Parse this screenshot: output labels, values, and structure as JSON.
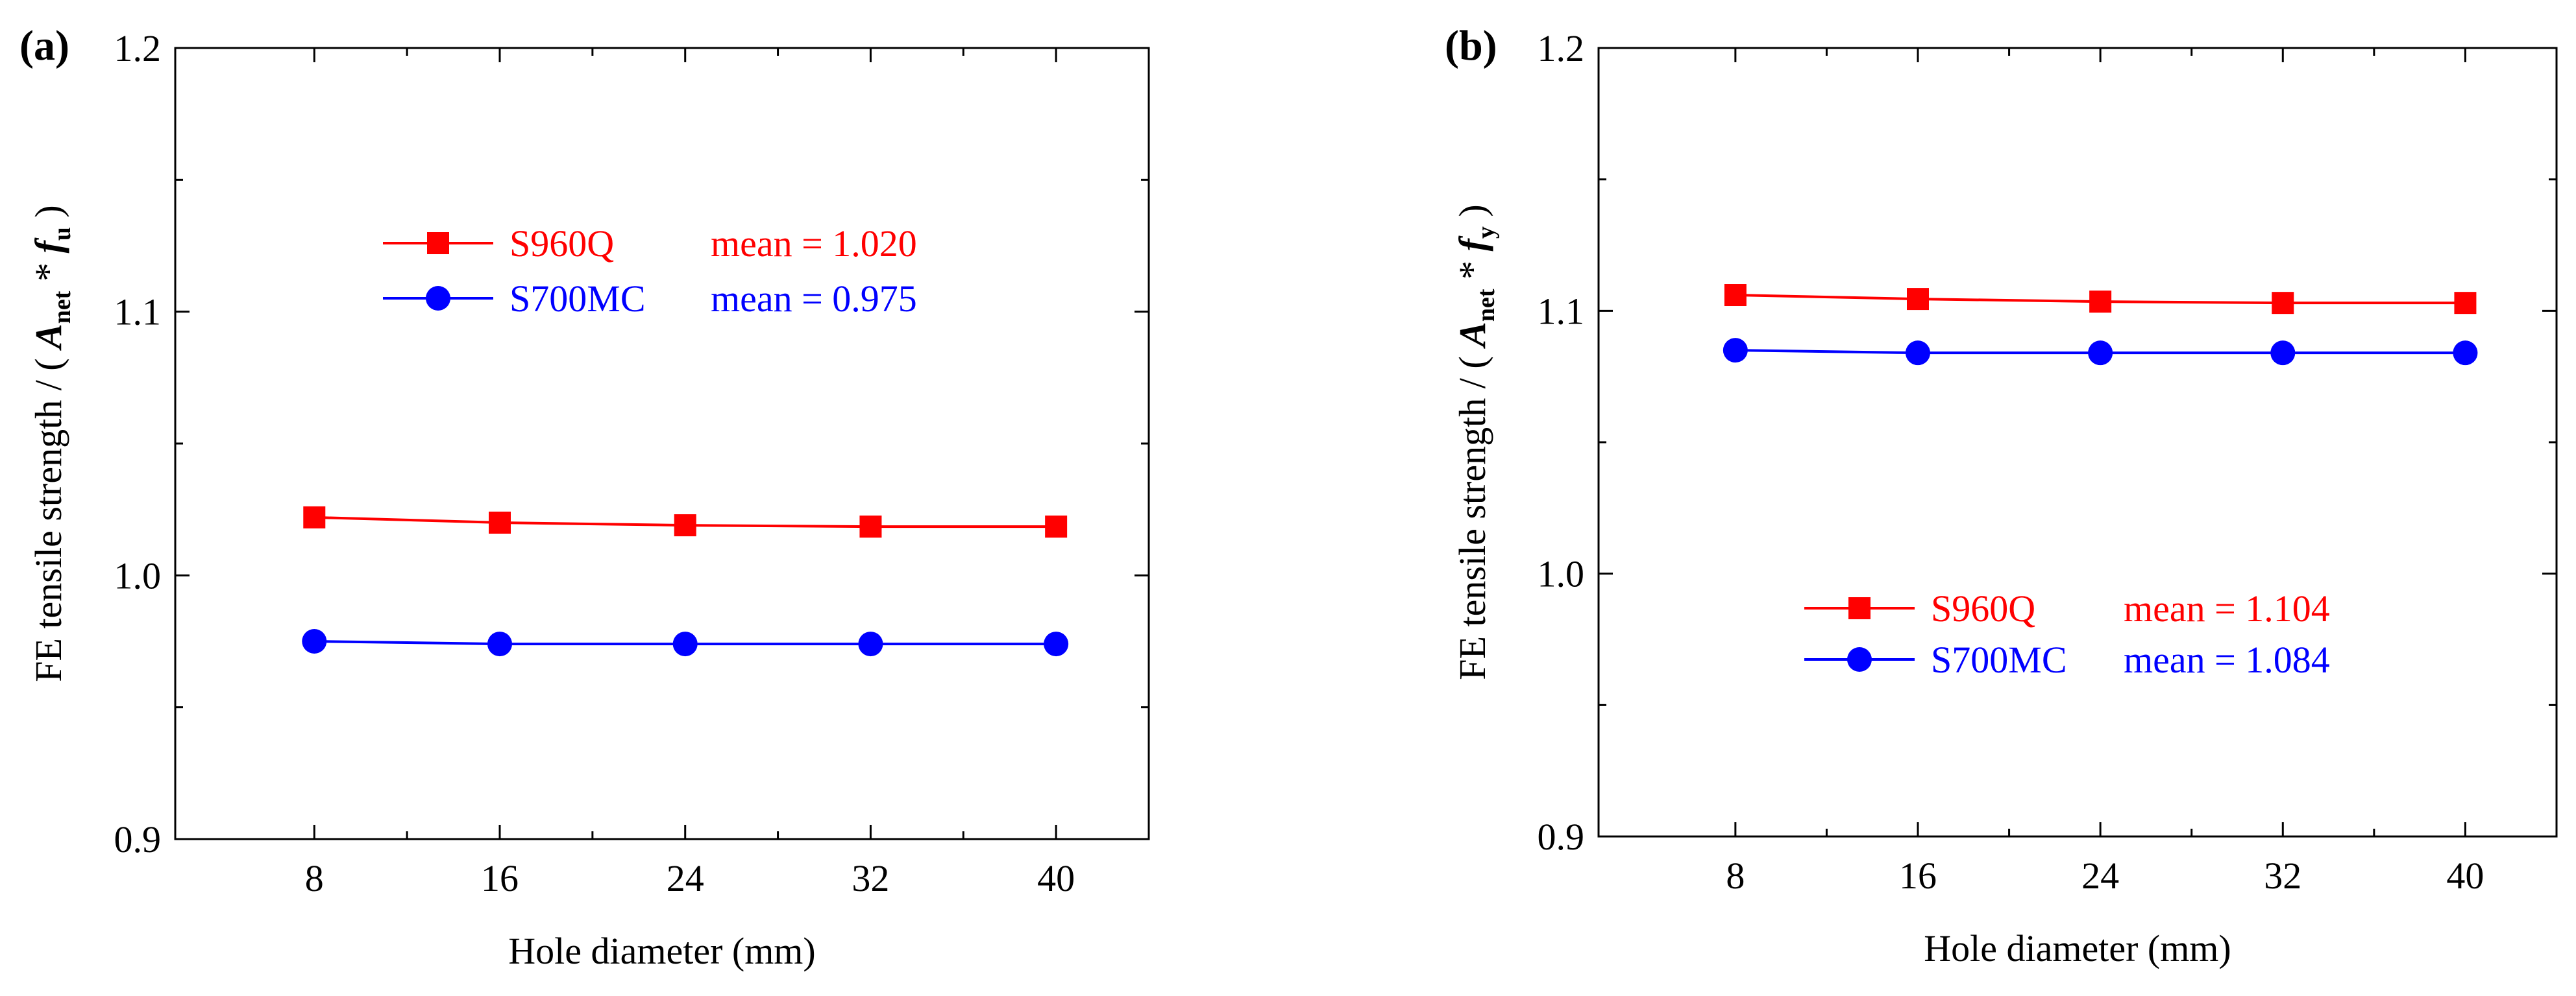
{
  "figure": {
    "panels_count": 2
  },
  "chart_data": [
    {
      "type": "line",
      "panel_label": "(a)",
      "xlabel": "Hole diameter (mm)",
      "ylabel_prefix": "FE tensile strength / ( ",
      "ylabel_symbol": "A",
      "ylabel_sub1": "net",
      "ylabel_star": " * ",
      "ylabel_symbol2": "f",
      "ylabel_sub2": "u",
      "ylabel_suffix": " )",
      "x": [
        8,
        16,
        24,
        32,
        40
      ],
      "x_ticks": [
        "8",
        "16",
        "24",
        "32",
        "40"
      ],
      "xlim": [
        2,
        44
      ],
      "ylim": [
        0.9,
        1.2
      ],
      "y_ticks": [
        "0.9",
        "1.0",
        "1.1",
        "1.2"
      ],
      "series": [
        {
          "name": "S960Q",
          "mean_label": "mean = 1.020",
          "color": "#ff0000",
          "marker": "square",
          "values": [
            1.022,
            1.02,
            1.019,
            1.0185,
            1.0185
          ]
        },
        {
          "name": "S700MC",
          "mean_label": "mean = 0.975",
          "color": "#0000ff",
          "marker": "circle",
          "values": [
            0.975,
            0.974,
            0.974,
            0.974,
            0.974
          ]
        }
      ],
      "legend_position": "upper-center"
    },
    {
      "type": "line",
      "panel_label": "(b)",
      "xlabel": "Hole diameter (mm)",
      "ylabel_prefix": "FE tensile strength / ( ",
      "ylabel_symbol": "A",
      "ylabel_sub1": "net",
      "ylabel_star": " * ",
      "ylabel_symbol2": "f",
      "ylabel_sub2": "y",
      "ylabel_suffix": " )",
      "x": [
        8,
        16,
        24,
        32,
        40
      ],
      "x_ticks": [
        "8",
        "16",
        "24",
        "32",
        "40"
      ],
      "xlim": [
        2,
        44
      ],
      "ylim": [
        0.9,
        1.2
      ],
      "y_ticks": [
        "0.9",
        "1.0",
        "1.1",
        "1.2"
      ],
      "series": [
        {
          "name": "S960Q",
          "mean_label": "mean = 1.104",
          "color": "#ff0000",
          "marker": "square",
          "values": [
            1.106,
            1.1045,
            1.1035,
            1.103,
            1.103
          ]
        },
        {
          "name": "S700MC",
          "mean_label": "mean = 1.084",
          "color": "#0000ff",
          "marker": "circle",
          "values": [
            1.085,
            1.084,
            1.084,
            1.084,
            1.084
          ]
        }
      ],
      "legend_position": "lower-center"
    }
  ]
}
